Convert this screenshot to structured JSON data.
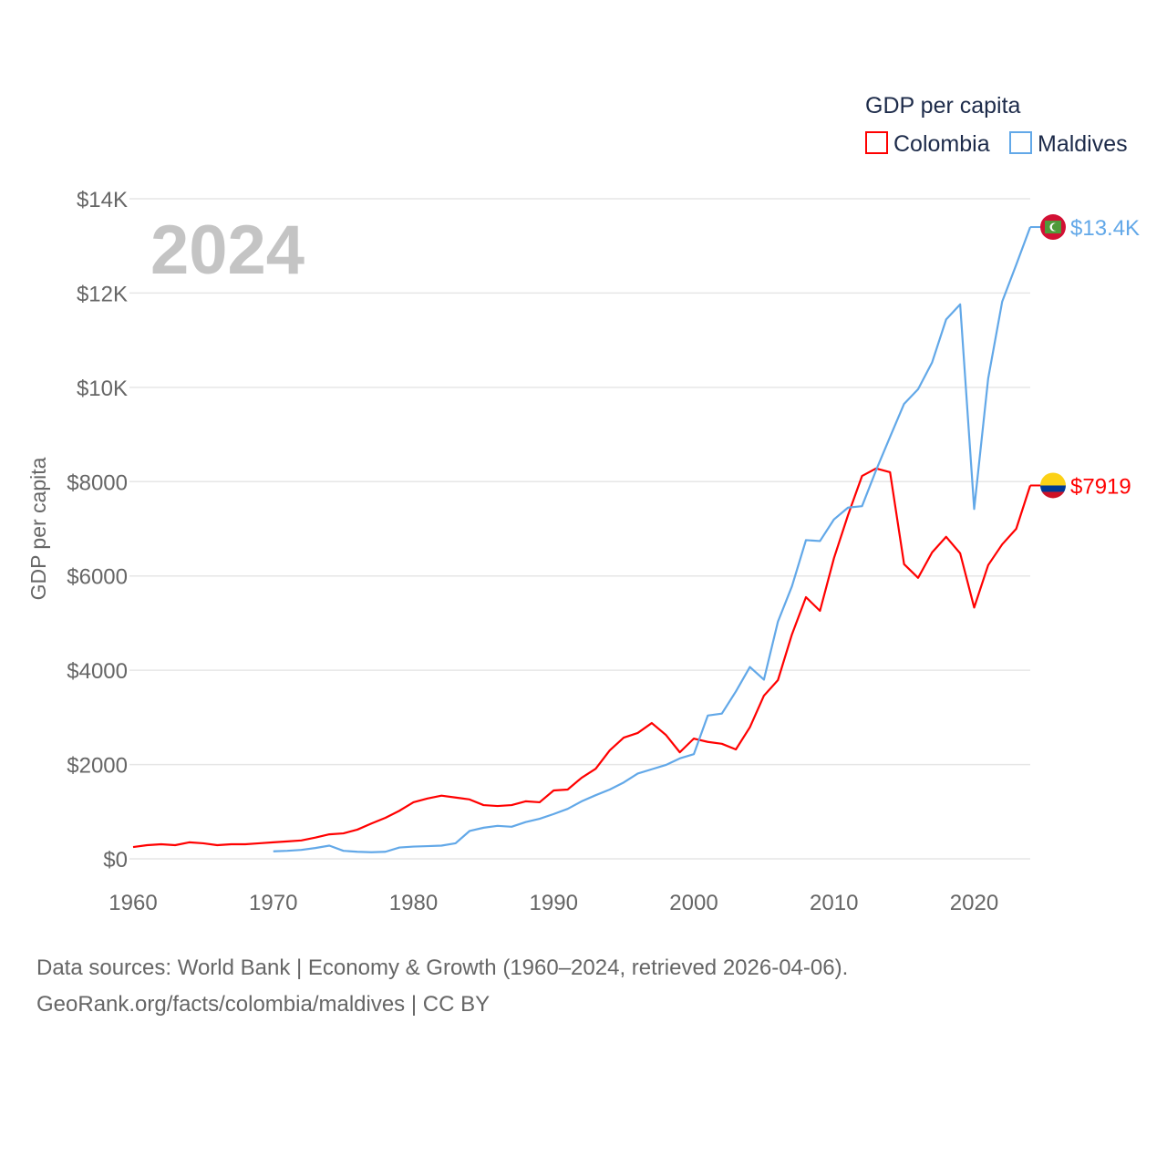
{
  "chart_data": {
    "type": "line",
    "title": "GDP per capita",
    "year_label": "2024",
    "ylabel": "GDP per capita",
    "xlabel": "",
    "xlim": [
      1960,
      2024
    ],
    "ylim": [
      0,
      14000
    ],
    "x_ticks": [
      "1960",
      "1970",
      "1980",
      "1990",
      "2000",
      "2010",
      "2020"
    ],
    "y_ticks": [
      {
        "value": 0,
        "label": "$0"
      },
      {
        "value": 2000,
        "label": "$2000"
      },
      {
        "value": 4000,
        "label": "$4000"
      },
      {
        "value": 6000,
        "label": "$6000"
      },
      {
        "value": 8000,
        "label": "$8000"
      },
      {
        "value": 10000,
        "label": "$10K"
      },
      {
        "value": 12000,
        "label": "$12K"
      },
      {
        "value": 14000,
        "label": "$14K"
      }
    ],
    "grid": true,
    "legend_position": "top-right",
    "series": [
      {
        "name": "Colombia",
        "color": "#ff0000",
        "start_year": 1960,
        "end_label": "$7919",
        "flag": "colombia-flag",
        "values": [
          250,
          290,
          310,
          290,
          350,
          330,
          290,
          310,
          310,
          330,
          350,
          370,
          390,
          450,
          520,
          540,
          620,
          750,
          870,
          1020,
          1200,
          1280,
          1340,
          1300,
          1260,
          1140,
          1120,
          1140,
          1220,
          1200,
          1450,
          1470,
          1720,
          1910,
          2300,
          2570,
          2670,
          2880,
          2630,
          2260,
          2550,
          2480,
          2440,
          2320,
          2790,
          3460,
          3790,
          4760,
          5550,
          5260,
          6380,
          7290,
          8120,
          8280,
          8200,
          6250,
          5960,
          6500,
          6830,
          6480,
          5330,
          6230,
          6670,
          7000,
          7919
        ]
      },
      {
        "name": "Maldives",
        "color": "#62a8e8",
        "start_year": 1970,
        "end_label": "$13.4K",
        "flag": "maldives-flag",
        "values": [
          160,
          170,
          190,
          230,
          280,
          170,
          150,
          140,
          150,
          240,
          260,
          270,
          280,
          330,
          590,
          660,
          700,
          680,
          780,
          850,
          950,
          1060,
          1220,
          1350,
          1470,
          1620,
          1810,
          1900,
          1990,
          2130,
          2220,
          3040,
          3080,
          3550,
          4070,
          3800,
          5030,
          5780,
          6760,
          6740,
          7200,
          7450,
          7480,
          8240,
          8950,
          9650,
          9960,
          10530,
          11440,
          11760,
          7420,
          10190,
          11820,
          12600,
          13400
        ]
      }
    ]
  },
  "footer": {
    "line1": "Data sources: World Bank | Economy & Growth (1960–2024, retrieved 2026-04-06).",
    "line2": "GeoRank.org/facts/colombia/maldives | CC BY"
  }
}
